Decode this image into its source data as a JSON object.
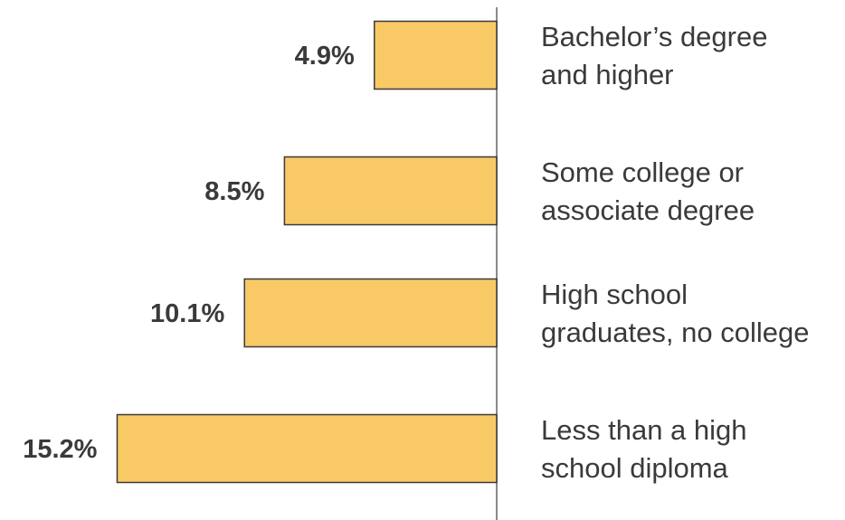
{
  "chart_data": {
    "type": "bar",
    "orientation": "horizontal",
    "title": "",
    "xlabel": "",
    "ylabel": "",
    "categories": [
      [
        "Bachelor’s degree",
        "and higher"
      ],
      [
        "Some college or",
        "associate degree"
      ],
      [
        "High school",
        "graduates, no college"
      ],
      [
        "Less than a high",
        "school diploma"
      ]
    ],
    "values": [
      4.9,
      8.5,
      10.1,
      15.2
    ],
    "value_labels": [
      "4.9%",
      "8.5%",
      "10.1%",
      "15.2%"
    ],
    "unit": "%",
    "grid": false,
    "legend": "none",
    "colors": {
      "bar": "#f9c966",
      "bar_border": "#3a3a3a",
      "axis": "#8a8a8a",
      "text": "#3a3a3a"
    }
  }
}
